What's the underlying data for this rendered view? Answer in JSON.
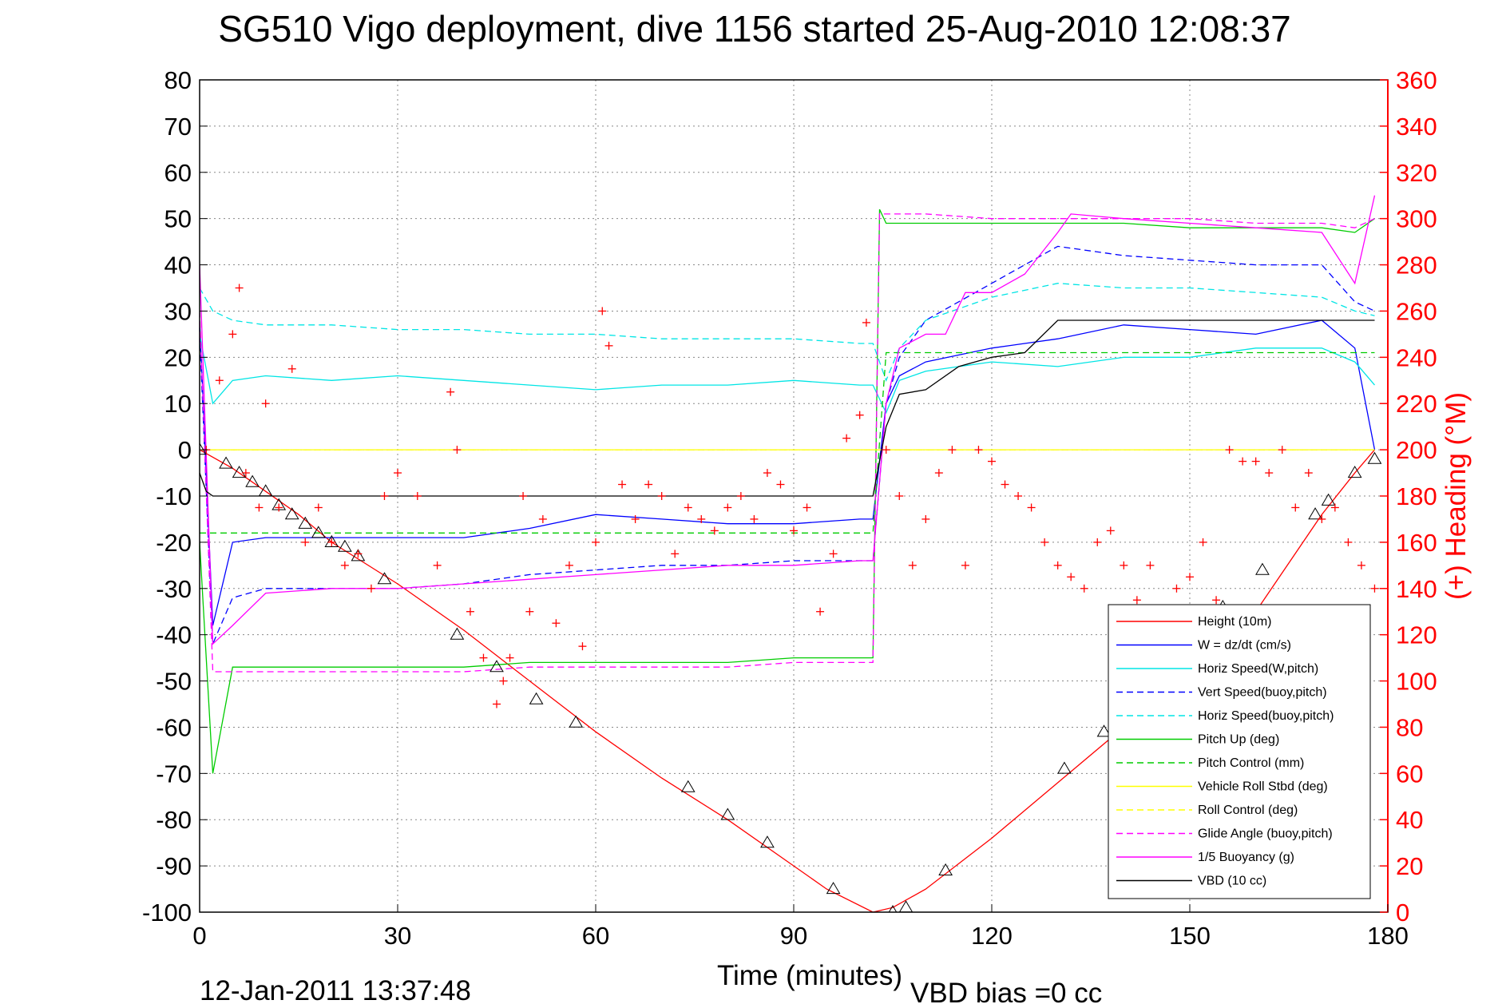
{
  "chart_data": {
    "type": "line",
    "title": "SG510 Vigo deployment, dive 1156 started 25-Aug-2010 12:08:37",
    "xlabel": "Time (minutes)",
    "ylabel_left": "",
    "ylabel_right": "(+) Heading (°M)",
    "footer_left": "12-Jan-2011 13:37:48",
    "footer_right": "VBD bias =0 cc",
    "xlim": [
      0,
      180
    ],
    "ylim_left": [
      -100,
      80
    ],
    "ylim_right": [
      0,
      360
    ],
    "x_ticks": [
      0,
      30,
      60,
      90,
      120,
      150,
      180
    ],
    "y_ticks_left": [
      80,
      70,
      60,
      50,
      40,
      30,
      20,
      10,
      0,
      -10,
      -20,
      -30,
      -40,
      -50,
      -60,
      -70,
      -80,
      -90,
      -100
    ],
    "y_ticks_right": [
      360,
      340,
      320,
      300,
      280,
      260,
      240,
      220,
      200,
      180,
      160,
      140,
      120,
      100,
      80,
      60,
      40,
      20,
      0
    ],
    "grid": true,
    "legend_position": "bottom-right",
    "colors": {
      "height": "#ff0000",
      "w": "#0000ff",
      "cyan": "#00e5e5",
      "green": "#00cc00",
      "yellow": "#ffff00",
      "magenta": "#ff00ff",
      "black": "#000000",
      "heading": "#ff0000"
    },
    "series": [
      {
        "name": "Height (10m)",
        "color": "#ff0000",
        "style": "solid",
        "x": [
          0,
          5,
          10,
          15,
          20,
          30,
          40,
          50,
          60,
          70,
          80,
          90,
          95,
          102,
          105,
          110,
          120,
          130,
          140,
          150,
          160,
          170,
          175,
          178
        ],
        "y": [
          0,
          -4,
          -9,
          -14,
          -20,
          -29,
          -39,
          -50,
          -61,
          -71,
          -80,
          -90,
          -95,
          -100,
          -99,
          -95,
          -84,
          -72,
          -60,
          -49,
          -35,
          -14,
          -5,
          0
        ]
      },
      {
        "name": "W = dz/dt (cm/s)",
        "color": "#0000ff",
        "style": "solid",
        "x": [
          0,
          2,
          5,
          10,
          20,
          30,
          40,
          50,
          60,
          70,
          80,
          90,
          100,
          102,
          104,
          106,
          110,
          120,
          130,
          140,
          150,
          160,
          170,
          175,
          178
        ],
        "y": [
          28,
          -38,
          -20,
          -19,
          -19,
          -19,
          -19,
          -17,
          -14,
          -15,
          -16,
          -16,
          -15,
          -15,
          10,
          16,
          19,
          22,
          24,
          27,
          26,
          25,
          28,
          22,
          0
        ]
      },
      {
        "name": "Horiz Speed(W,pitch)",
        "color": "#00e5e5",
        "style": "solid",
        "x": [
          0,
          2,
          5,
          10,
          20,
          30,
          40,
          50,
          60,
          70,
          80,
          90,
          100,
          102,
          104,
          106,
          110,
          120,
          130,
          140,
          150,
          160,
          170,
          175,
          178
        ],
        "y": [
          25,
          10,
          15,
          16,
          15,
          16,
          15,
          14,
          13,
          14,
          14,
          15,
          14,
          14,
          8,
          15,
          17,
          19,
          18,
          20,
          20,
          22,
          22,
          19,
          14
        ]
      },
      {
        "name": "Vert Speed(buoy,pitch)",
        "color": "#0000ff",
        "style": "dashed",
        "x": [
          0,
          2,
          5,
          10,
          20,
          30,
          40,
          50,
          60,
          70,
          80,
          90,
          100,
          102,
          104,
          106,
          110,
          120,
          130,
          140,
          150,
          160,
          170,
          175,
          178
        ],
        "y": [
          25,
          -42,
          -32,
          -30,
          -30,
          -30,
          -29,
          -27,
          -26,
          -25,
          -25,
          -24,
          -24,
          -24,
          10,
          20,
          28,
          36,
          44,
          42,
          41,
          40,
          40,
          32,
          30
        ]
      },
      {
        "name": "Horiz Speed(buoy,pitch)",
        "color": "#00e5e5",
        "style": "dashed",
        "x": [
          0,
          2,
          5,
          10,
          20,
          30,
          40,
          50,
          60,
          70,
          80,
          90,
          100,
          102,
          104,
          106,
          110,
          120,
          130,
          140,
          150,
          160,
          170,
          175,
          178
        ],
        "y": [
          35,
          30,
          28,
          27,
          27,
          26,
          26,
          25,
          25,
          24,
          24,
          24,
          23,
          23,
          15,
          22,
          28,
          33,
          36,
          35,
          35,
          34,
          33,
          30,
          29
        ]
      },
      {
        "name": "Pitch Up (deg)",
        "color": "#00cc00",
        "style": "solid",
        "x": [
          0,
          2,
          5,
          10,
          20,
          30,
          40,
          50,
          60,
          70,
          80,
          90,
          100,
          101,
          102,
          103,
          104,
          110,
          120,
          130,
          140,
          150,
          160,
          170,
          175,
          178
        ],
        "y": [
          -20,
          -70,
          -47,
          -47,
          -47,
          -47,
          -47,
          -46,
          -46,
          -46,
          -46,
          -45,
          -45,
          -45,
          -45,
          52,
          49,
          49,
          49,
          49,
          49,
          48,
          48,
          48,
          47,
          50
        ]
      },
      {
        "name": "Pitch Control (mm)",
        "color": "#00cc00",
        "style": "dashed",
        "x": [
          0,
          2,
          10,
          20,
          30,
          50,
          70,
          90,
          102,
          104,
          110,
          130,
          150,
          170,
          178
        ],
        "y": [
          -18,
          -18,
          -18,
          -18,
          -18,
          -18,
          -18,
          -18,
          -18,
          21,
          21,
          21,
          21,
          21,
          21
        ]
      },
      {
        "name": "Vehicle Roll Stbd (deg)",
        "color": "#ffff00",
        "style": "solid",
        "x": [
          0,
          10,
          20,
          30,
          40,
          50,
          60,
          70,
          80,
          90,
          100,
          110,
          120,
          130,
          140,
          150,
          160,
          170,
          178
        ],
        "y": [
          0,
          0,
          0,
          0,
          0,
          0,
          0,
          0,
          0,
          0,
          0,
          0,
          0,
          0,
          0,
          0,
          0,
          0,
          0
        ]
      },
      {
        "name": "Roll Control (deg)",
        "color": "#ffff00",
        "style": "dashed",
        "x": [
          0,
          10,
          20,
          30,
          40,
          50,
          60,
          70,
          80,
          90,
          100,
          110,
          120,
          130,
          140,
          150,
          160,
          170,
          178
        ],
        "y": [
          0,
          0,
          0,
          0,
          0,
          0,
          0,
          0,
          0,
          0,
          0,
          0,
          0,
          0,
          0,
          0,
          0,
          0,
          0
        ]
      },
      {
        "name": "Glide Angle (buoy,pitch)",
        "color": "#ff00ff",
        "style": "dashed",
        "x": [
          0,
          2,
          5,
          10,
          20,
          30,
          40,
          50,
          60,
          70,
          80,
          90,
          100,
          102,
          103,
          104,
          110,
          120,
          130,
          140,
          150,
          160,
          170,
          175,
          178
        ],
        "y": [
          30,
          -48,
          -48,
          -48,
          -48,
          -48,
          -48,
          -47,
          -47,
          -47,
          -47,
          -46,
          -46,
          -46,
          51,
          51,
          51,
          50,
          50,
          50,
          50,
          49,
          49,
          48,
          50
        ]
      },
      {
        "name": "1/5 Buoyancy (g)",
        "color": "#ff00ff",
        "style": "solid",
        "x": [
          0,
          2,
          5,
          10,
          20,
          30,
          40,
          50,
          60,
          70,
          80,
          90,
          100,
          102,
          104,
          106,
          110,
          113,
          116,
          120,
          125,
          130,
          132,
          140,
          150,
          160,
          170,
          175,
          178
        ],
        "y": [
          40,
          -42,
          -38,
          -31,
          -30,
          -30,
          -29,
          -28,
          -27,
          -26,
          -25,
          -25,
          -24,
          -24,
          10,
          22,
          25,
          25,
          34,
          34,
          38,
          47,
          51,
          50,
          49,
          48,
          47,
          36,
          55
        ]
      },
      {
        "name": "VBD (10 cc)",
        "color": "#000000",
        "style": "solid",
        "x": [
          0,
          1,
          2,
          10,
          20,
          30,
          40,
          50,
          60,
          70,
          80,
          90,
          100,
          102,
          104,
          106,
          110,
          115,
          120,
          125,
          130,
          140,
          150,
          160,
          170,
          178
        ],
        "y": [
          -5,
          -9,
          -10,
          -10,
          -10,
          -10,
          -10,
          -10,
          -10,
          -10,
          -10,
          -10,
          -10,
          -10,
          5,
          12,
          13,
          18,
          20,
          21,
          28,
          28,
          28,
          28,
          28,
          28
        ]
      }
    ],
    "heading_points": {
      "name": "Heading",
      "color": "#ff0000",
      "marker": "+",
      "x": [
        1,
        3,
        5,
        6,
        7,
        9,
        10,
        12,
        14,
        16,
        18,
        20,
        22,
        24,
        26,
        28,
        30,
        33,
        36,
        38,
        39,
        41,
        43,
        45,
        46,
        47,
        49,
        50,
        52,
        54,
        56,
        58,
        60,
        61,
        62,
        64,
        66,
        68,
        70,
        72,
        74,
        76,
        78,
        80,
        82,
        84,
        86,
        88,
        90,
        92,
        94,
        96,
        98,
        100,
        101,
        104,
        106,
        108,
        110,
        112,
        114,
        116,
        118,
        120,
        122,
        124,
        126,
        128,
        130,
        132,
        134,
        136,
        138,
        140,
        142,
        144,
        146,
        148,
        150,
        152,
        154,
        156,
        158,
        160,
        162,
        164,
        166,
        168,
        170,
        172,
        174,
        176,
        178
      ],
      "y": [
        200,
        230,
        250,
        270,
        190,
        175,
        220,
        175,
        235,
        160,
        175,
        160,
        150,
        155,
        140,
        180,
        190,
        180,
        150,
        225,
        200,
        130,
        110,
        90,
        100,
        110,
        180,
        130,
        170,
        125,
        150,
        115,
        160,
        260,
        245,
        185,
        170,
        185,
        180,
        155,
        175,
        170,
        165,
        175,
        180,
        170,
        190,
        185,
        165,
        175,
        130,
        155,
        205,
        215,
        255,
        200,
        180,
        150,
        170,
        190,
        200,
        150,
        200,
        195,
        185,
        180,
        175,
        160,
        150,
        145,
        140,
        160,
        165,
        150,
        135,
        150,
        125,
        140,
        145,
        160,
        135,
        200,
        195,
        195,
        190,
        200,
        175,
        190,
        170,
        175,
        160,
        150,
        140
      ]
    },
    "triangle_markers": {
      "x": [
        0,
        4,
        6,
        8,
        10,
        12,
        14,
        16,
        18,
        20,
        22,
        24,
        28,
        39,
        45,
        51,
        57,
        74,
        80,
        86,
        96,
        105,
        107,
        113,
        131,
        137,
        155,
        161,
        169,
        171,
        175,
        178
      ],
      "y": [
        0,
        -3,
        -5,
        -7,
        -9,
        -12,
        -14,
        -16,
        -18,
        -20,
        -21,
        -23,
        -28,
        -40,
        -47,
        -54,
        -59,
        -73,
        -79,
        -85,
        -95,
        -100,
        -99,
        -91,
        -69,
        -61,
        -34,
        -26,
        -14,
        -11,
        -5,
        -2
      ]
    }
  }
}
